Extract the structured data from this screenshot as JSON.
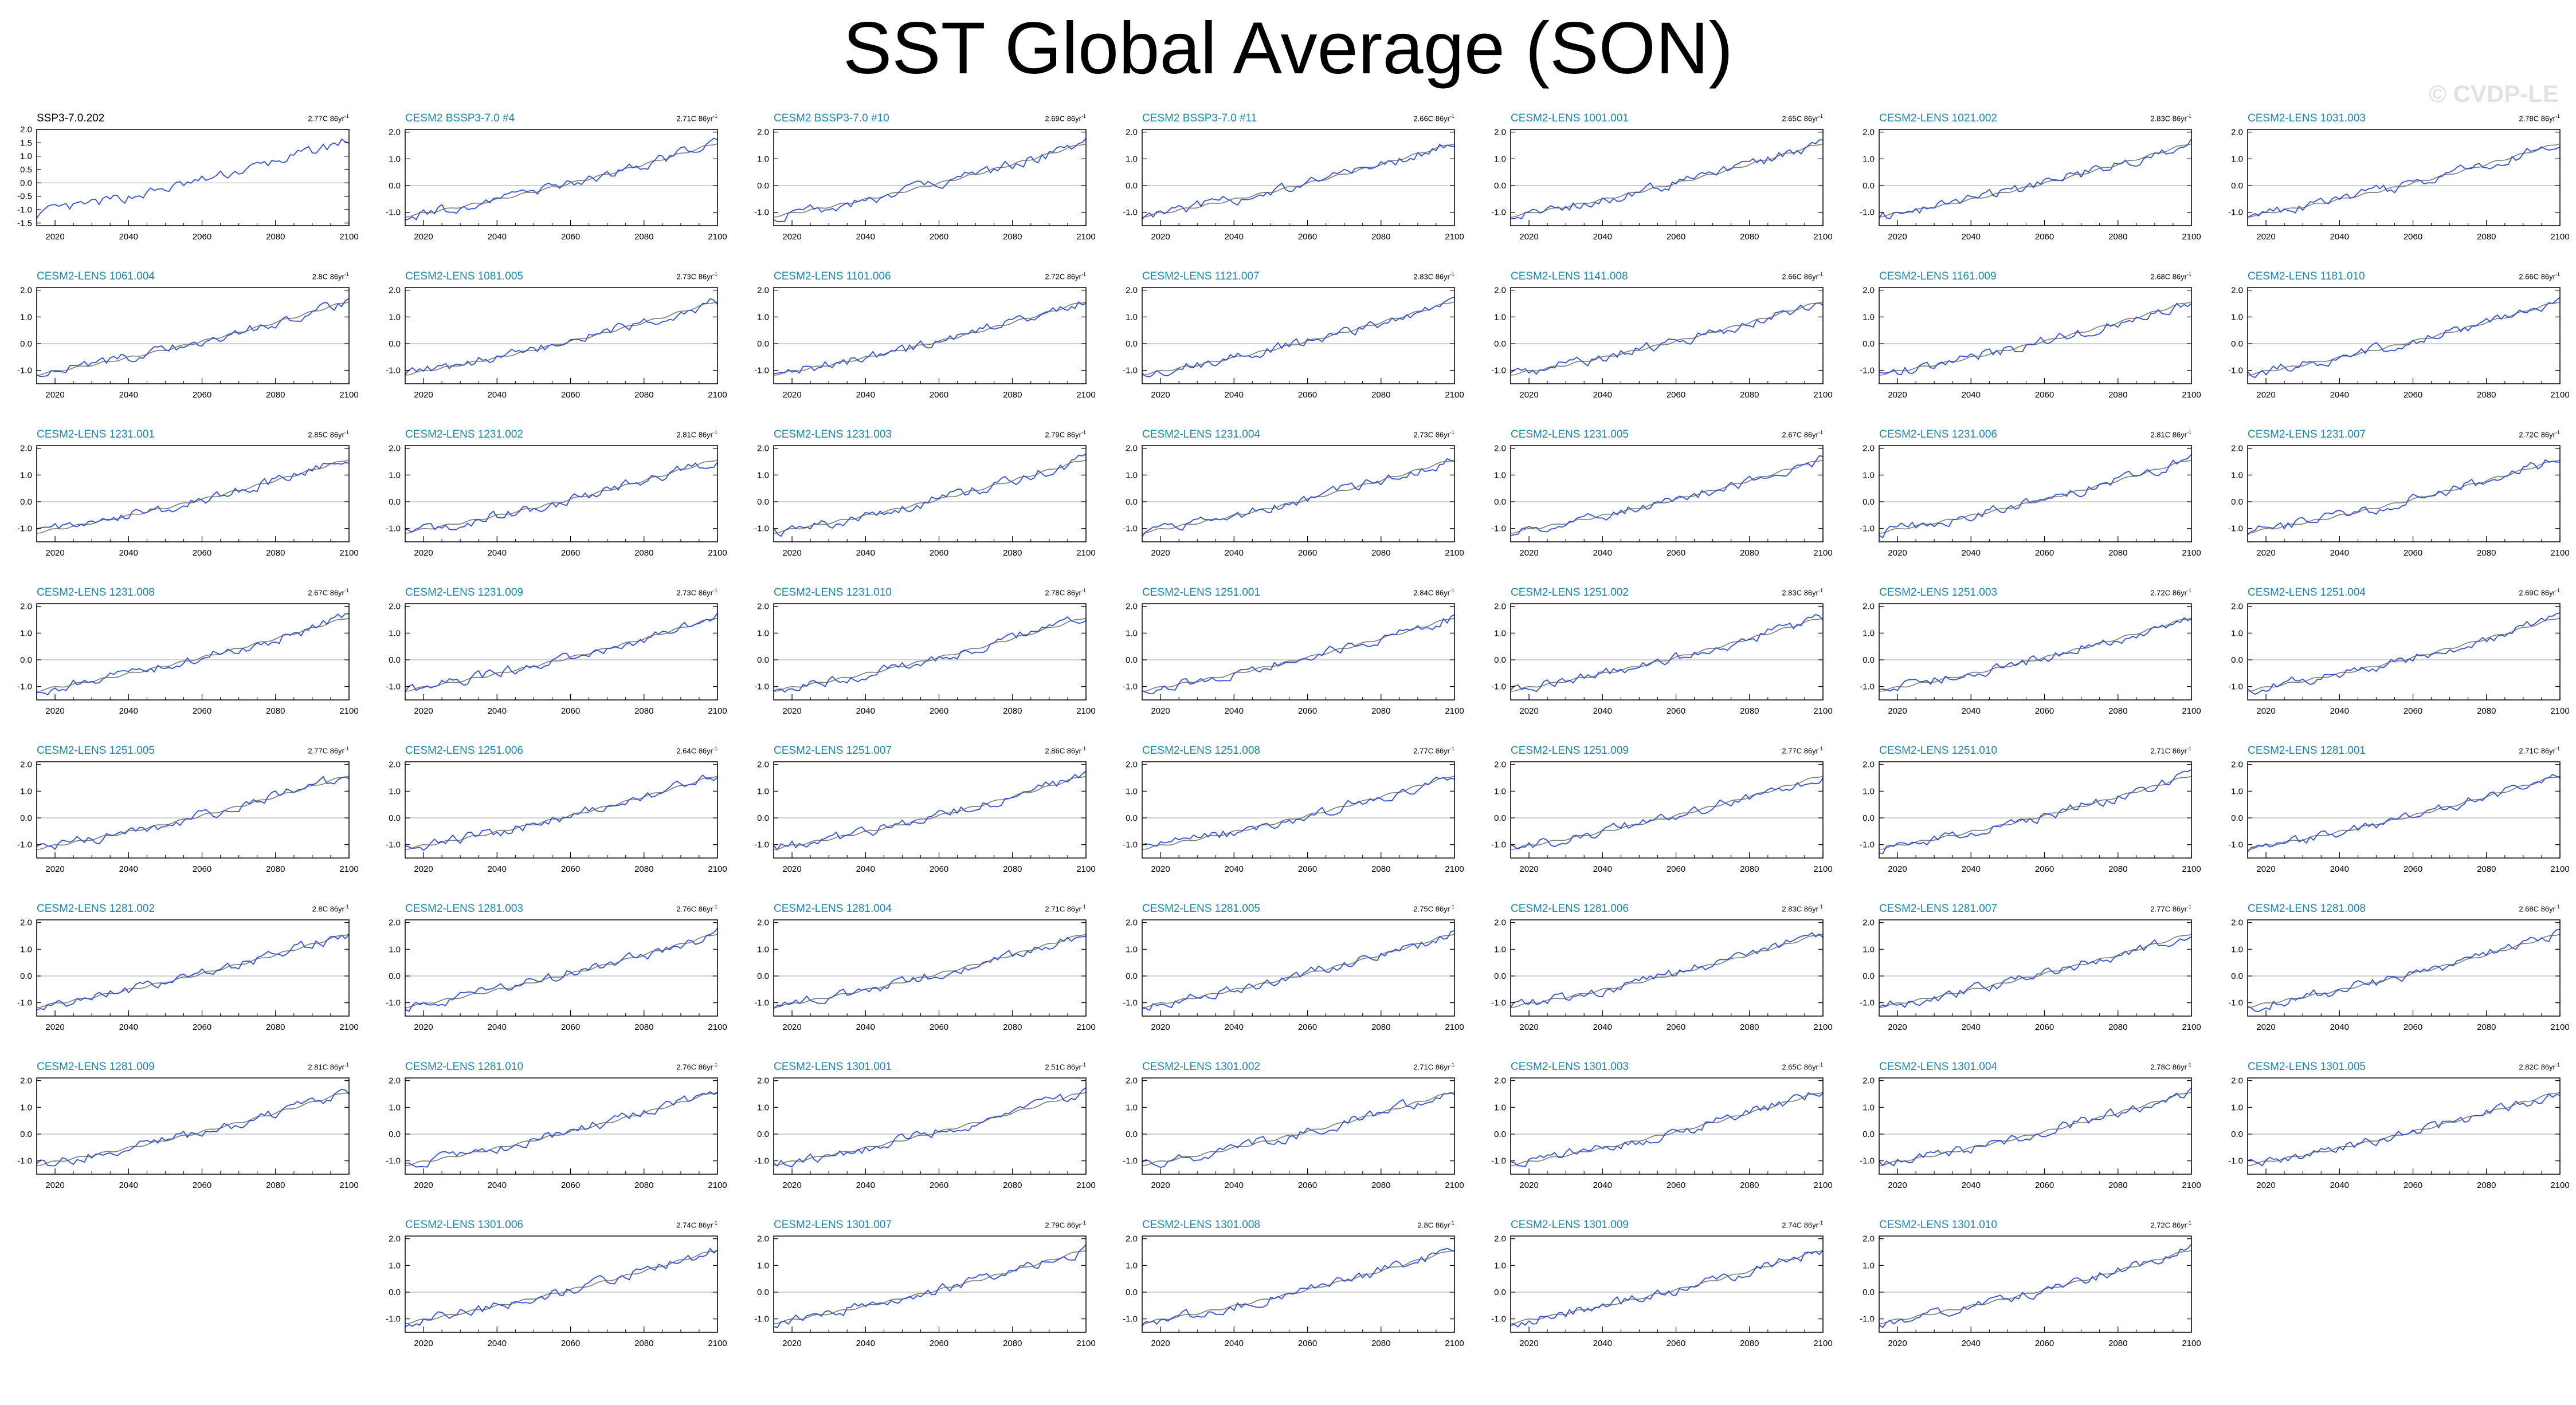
{
  "title": "SST Global Average (SON)",
  "watermark": "© CVDP-LE",
  "colors": {
    "obs_title": "#000000",
    "member_title": "#1a86b4",
    "member_line": "#2e4fd6",
    "mean_line": "#7a7a7a",
    "obs_line": "#2e4fd6",
    "zero_line": "#b0b0b0"
  },
  "chart_data": {
    "type": "line",
    "x_ticks": [
      2020,
      2040,
      2060,
      2080,
      2100
    ],
    "xlim": [
      2015,
      2100
    ],
    "obs_y_ticks": [
      "2.0",
      "1.5",
      "1.0",
      "0.5",
      "0.0",
      "-0.5",
      "-1.0",
      "-1.5"
    ],
    "obs_ylim": [
      -1.6,
      2.0
    ],
    "member_y_ticks": [
      "2.0",
      "1.0",
      "0.0",
      "-1.0"
    ],
    "member_ylim": [
      -1.5,
      2.1
    ],
    "trend_unit": "C 86yr",
    "trend_exp": "-1",
    "series": [
      {
        "name": "SSP3-7.0.202",
        "trend": "2.77",
        "observed": true
      },
      {
        "name": "CESM2 BSSP3-7.0 #4",
        "trend": "2.71"
      },
      {
        "name": "CESM2 BSSP3-7.0 #10",
        "trend": "2.69"
      },
      {
        "name": "CESM2 BSSP3-7.0 #11",
        "trend": "2.66"
      },
      {
        "name": "CESM2-LENS 1001.001",
        "trend": "2.65"
      },
      {
        "name": "CESM2-LENS 1021.002",
        "trend": "2.83"
      },
      {
        "name": "CESM2-LENS 1031.003",
        "trend": "2.78"
      },
      {
        "name": "CESM2-LENS 1061.004",
        "trend": "2.8"
      },
      {
        "name": "CESM2-LENS 1081.005",
        "trend": "2.73"
      },
      {
        "name": "CESM2-LENS 1101.006",
        "trend": "2.72"
      },
      {
        "name": "CESM2-LENS 1121.007",
        "trend": "2.83"
      },
      {
        "name": "CESM2-LENS 1141.008",
        "trend": "2.66"
      },
      {
        "name": "CESM2-LENS 1161.009",
        "trend": "2.68"
      },
      {
        "name": "CESM2-LENS 1181.010",
        "trend": "2.66"
      },
      {
        "name": "CESM2-LENS 1231.001",
        "trend": "2.85"
      },
      {
        "name": "CESM2-LENS 1231.002",
        "trend": "2.81"
      },
      {
        "name": "CESM2-LENS 1231.003",
        "trend": "2.79"
      },
      {
        "name": "CESM2-LENS 1231.004",
        "trend": "2.73"
      },
      {
        "name": "CESM2-LENS 1231.005",
        "trend": "2.67"
      },
      {
        "name": "CESM2-LENS 1231.006",
        "trend": "2.81"
      },
      {
        "name": "CESM2-LENS 1231.007",
        "trend": "2.72"
      },
      {
        "name": "CESM2-LENS 1231.008",
        "trend": "2.67"
      },
      {
        "name": "CESM2-LENS 1231.009",
        "trend": "2.73"
      },
      {
        "name": "CESM2-LENS 1231.010",
        "trend": "2.78"
      },
      {
        "name": "CESM2-LENS 1251.001",
        "trend": "2.84"
      },
      {
        "name": "CESM2-LENS 1251.002",
        "trend": "2.83"
      },
      {
        "name": "CESM2-LENS 1251.003",
        "trend": "2.72"
      },
      {
        "name": "CESM2-LENS 1251.004",
        "trend": "2.69"
      },
      {
        "name": "CESM2-LENS 1251.005",
        "trend": "2.77"
      },
      {
        "name": "CESM2-LENS 1251.006",
        "trend": "2.64"
      },
      {
        "name": "CESM2-LENS 1251.007",
        "trend": "2.86"
      },
      {
        "name": "CESM2-LENS 1251.008",
        "trend": "2.77"
      },
      {
        "name": "CESM2-LENS 1251.009",
        "trend": "2.77"
      },
      {
        "name": "CESM2-LENS 1251.010",
        "trend": "2.71"
      },
      {
        "name": "CESM2-LENS 1281.001",
        "trend": "2.71"
      },
      {
        "name": "CESM2-LENS 1281.002",
        "trend": "2.8"
      },
      {
        "name": "CESM2-LENS 1281.003",
        "trend": "2.76"
      },
      {
        "name": "CESM2-LENS 1281.004",
        "trend": "2.71"
      },
      {
        "name": "CESM2-LENS 1281.005",
        "trend": "2.75"
      },
      {
        "name": "CESM2-LENS 1281.006",
        "trend": "2.83"
      },
      {
        "name": "CESM2-LENS 1281.007",
        "trend": "2.77"
      },
      {
        "name": "CESM2-LENS 1281.008",
        "trend": "2.68"
      },
      {
        "name": "CESM2-LENS 1281.009",
        "trend": "2.81"
      },
      {
        "name": "CESM2-LENS 1281.010",
        "trend": "2.76"
      },
      {
        "name": "CESM2-LENS 1301.001",
        "trend": "2.51"
      },
      {
        "name": "CESM2-LENS 1301.002",
        "trend": "2.71"
      },
      {
        "name": "CESM2-LENS 1301.003",
        "trend": "2.65"
      },
      {
        "name": "CESM2-LENS 1301.004",
        "trend": "2.78"
      },
      {
        "name": "CESM2-LENS 1301.005",
        "trend": "2.82"
      },
      {
        "name": "CESM2-LENS 1301.006",
        "trend": "2.74"
      },
      {
        "name": "CESM2-LENS 1301.007",
        "trend": "2.79"
      },
      {
        "name": "CESM2-LENS 1301.008",
        "trend": "2.8"
      },
      {
        "name": "CESM2-LENS 1301.009",
        "trend": "2.74"
      },
      {
        "name": "CESM2-LENS 1301.010",
        "trend": "2.72"
      }
    ]
  }
}
